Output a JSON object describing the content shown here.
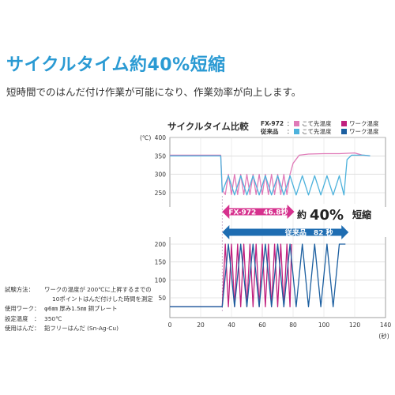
{
  "headline": "サイクルタイム約40%短縮",
  "subline": "短時間でのはんだ付け作業が可能になり、作業効率が向上します。",
  "test_info": {
    "method_label": "試験方法：",
    "method_line1": "ワークの温度が 200℃に上昇するまでの",
    "method_line2": "10ポイントはんだ付けした時間を測定",
    "work_label": "使用ワーク：",
    "work_value": "φ6㎜ 厚み1.5㎜ 銅プレート",
    "temp_label": "設定温度　：",
    "temp_value": "350℃",
    "solder_label": "使用はんだ：",
    "solder_value": "鉛フリーはんだ (Sn-Ag-Cu)"
  },
  "arrows": {
    "fx972_text": "FX-972　46.8秒",
    "conventional_text": "従来品　82 秒",
    "reduction_prefix": "約",
    "reduction_value": "40%",
    "reduction_suffix": "短縮"
  },
  "colors": {
    "fx_tip": "#e07ab8",
    "fx_work": "#c0207e",
    "conv_tip": "#4db2dc",
    "conv_work": "#1c5fa0",
    "headline": "#2a9ad3",
    "arrow_fx": "#d6318e",
    "arrow_conv": "#1f6db2"
  },
  "chart_data": {
    "type": "line",
    "title": "サイクルタイム比較",
    "xlabel": "(秒)",
    "ylabel": "(℃)",
    "xlim": [
      0,
      140
    ],
    "x_ticks": [
      0,
      20,
      40,
      60,
      80,
      100,
      120,
      140
    ],
    "y_ticks_top": [
      250,
      300,
      350,
      400
    ],
    "y_ticks_bottom": [
      50,
      100,
      150,
      200
    ],
    "legend": [
      {
        "group": "FX-972",
        "name": "こて先温度",
        "color_key": "fx_tip"
      },
      {
        "group": "FX-972",
        "name": "ワーク温度",
        "color_key": "fx_work"
      },
      {
        "group": "従来品",
        "name": "こて先温度",
        "color_key": "conv_tip"
      },
      {
        "group": "従来品",
        "name": "ワーク温度",
        "color_key": "conv_work"
      }
    ],
    "cycle_time_fx972_s": 46.8,
    "cycle_time_conventional_s": 82,
    "series": [
      {
        "name": "FX-972 こて先温度",
        "color_key": "fx_tip",
        "panel": "top",
        "x": [
          0,
          33,
          34,
          36,
          38,
          40,
          42,
          44,
          46,
          48,
          50,
          52,
          54,
          56,
          58,
          60,
          62,
          64,
          66,
          68,
          70,
          72,
          74,
          76,
          78,
          80,
          84,
          90,
          100,
          110,
          120,
          125,
          130
        ],
        "y": [
          352,
          352,
          258,
          245,
          300,
          245,
          300,
          245,
          300,
          245,
          300,
          245,
          300,
          245,
          300,
          245,
          300,
          245,
          300,
          245,
          300,
          245,
          300,
          245,
          300,
          330,
          352,
          355,
          356,
          356,
          358,
          352,
          350
        ]
      },
      {
        "name": "従来品 こて先温度",
        "color_key": "conv_tip",
        "panel": "top",
        "x": [
          0,
          33,
          34,
          38,
          42,
          46,
          50,
          54,
          58,
          62,
          66,
          70,
          74,
          78,
          82,
          86,
          90,
          94,
          98,
          102,
          106,
          110,
          113,
          115,
          118,
          122,
          126,
          130
        ],
        "y": [
          350,
          350,
          252,
          296,
          244,
          296,
          244,
          296,
          244,
          296,
          244,
          296,
          244,
          296,
          244,
          296,
          244,
          296,
          244,
          296,
          244,
          296,
          244,
          340,
          352,
          352,
          352,
          350
        ]
      },
      {
        "name": "FX-972 ワーク温度",
        "color_key": "fx_work",
        "panel": "bottom",
        "x": [
          0,
          34,
          36,
          38,
          40,
          42,
          44,
          46,
          48,
          50,
          52,
          54,
          56,
          58,
          60,
          62,
          64,
          66,
          68,
          70,
          72,
          74,
          76,
          78,
          79
        ],
        "y": [
          25,
          25,
          200,
          25,
          200,
          25,
          200,
          25,
          200,
          25,
          200,
          25,
          200,
          25,
          200,
          25,
          200,
          25,
          200,
          25,
          200,
          25,
          200,
          25,
          200
        ]
      },
      {
        "name": "従来品 ワーク温度",
        "color_key": "conv_work",
        "panel": "bottom",
        "x": [
          0,
          34,
          38,
          42,
          46,
          50,
          54,
          58,
          62,
          66,
          70,
          74,
          78,
          82,
          86,
          90,
          94,
          98,
          102,
          106,
          110,
          114
        ],
        "y": [
          25,
          25,
          200,
          25,
          200,
          25,
          200,
          25,
          200,
          25,
          200,
          25,
          200,
          25,
          200,
          25,
          200,
          25,
          200,
          25,
          200,
          200
        ]
      }
    ]
  }
}
